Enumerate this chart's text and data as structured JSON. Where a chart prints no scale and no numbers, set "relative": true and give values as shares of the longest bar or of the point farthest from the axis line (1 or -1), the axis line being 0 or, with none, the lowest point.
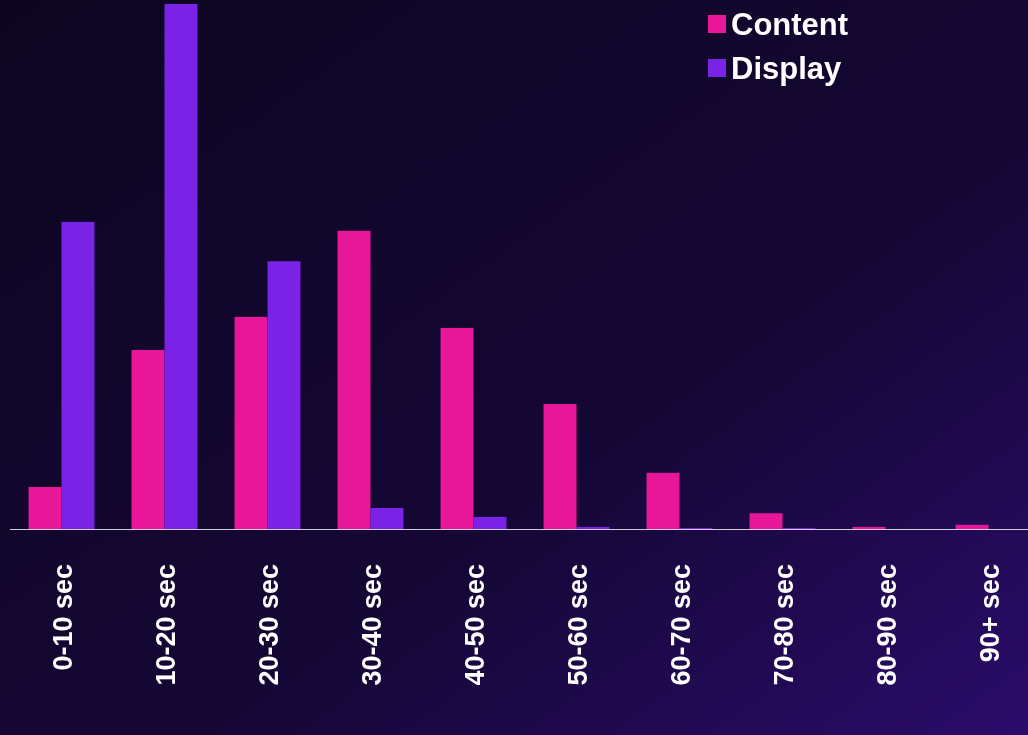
{
  "chart_data": {
    "type": "bar",
    "relative": true,
    "categories": [
      "0-10 sec",
      "10-20 sec",
      "20-30 sec",
      "30-40 sec",
      "40-50 sec",
      "50-60 sec",
      "60-70 sec",
      "70-80 sec",
      "80-90 sec",
      "90+ sec"
    ],
    "series": [
      {
        "name": "Content",
        "color": "#e8179a",
        "values": [
          0.08,
          0.341,
          0.404,
          0.568,
          0.383,
          0.238,
          0.107,
          0.03,
          0.004,
          0.008
        ]
      },
      {
        "name": "Display",
        "color": "#7a22e6",
        "values": [
          0.585,
          1,
          0.51,
          0.04,
          0.023,
          0.004,
          0.002,
          0.002,
          0,
          0
        ]
      }
    ],
    "legend": "top right"
  }
}
